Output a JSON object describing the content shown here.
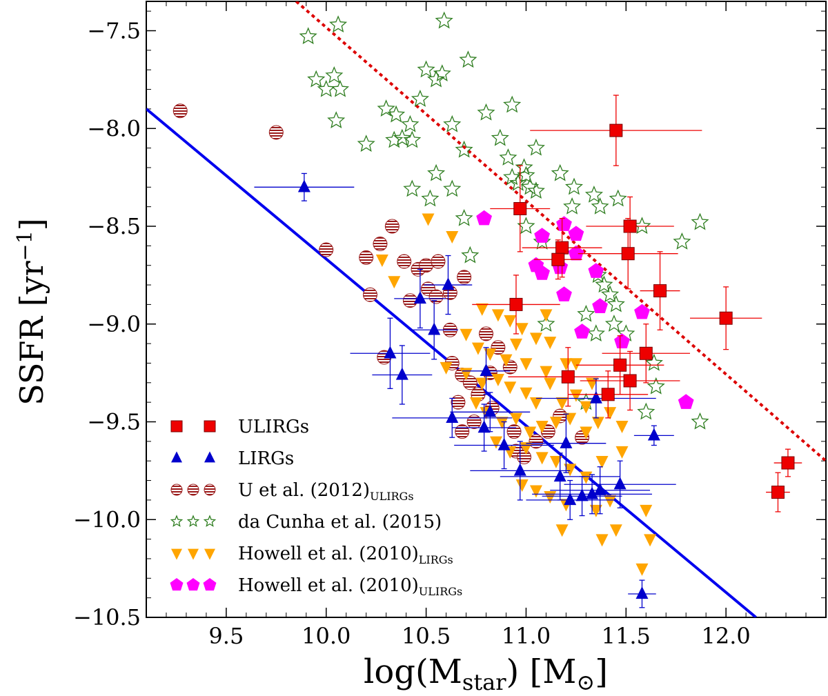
{
  "chart_data": {
    "type": "scatter",
    "title": "",
    "xlabel": {
      "main": "log(M",
      "sub": "star",
      "unit": ") [M",
      "unit_sub": "⊙",
      "close": "]"
    },
    "ylabel": {
      "main": "SSFR [yr",
      "sup": "−1",
      "close": "]"
    },
    "xlim": [
      9.1,
      12.5
    ],
    "ylim": [
      -10.5,
      -7.35
    ],
    "xticks": [
      9.5,
      10.0,
      10.5,
      11.0,
      11.5,
      12.0
    ],
    "xtick_labels": [
      "9.5",
      "10.0",
      "10.5",
      "11.0",
      "11.5",
      "12.0"
    ],
    "yticks": [
      -10.5,
      -10.0,
      -9.5,
      -9.0,
      -8.5,
      -8.0,
      -7.5
    ],
    "ytick_labels": [
      "−10.5",
      "−10.0",
      "−9.5",
      "−9.0",
      "−8.5",
      "−8.0",
      "−7.5"
    ],
    "grid": false,
    "legend_position": "lower-left",
    "lines": [
      {
        "name": "LIRG fit",
        "style": "solid",
        "color": "#0000ee",
        "x": [
          9.1,
          12.15
        ],
        "y": [
          -7.9,
          -10.5
        ]
      },
      {
        "name": "ULIRG fit",
        "style": "dotted",
        "color": "#dd0000",
        "x": [
          9.85,
          12.5
        ],
        "y": [
          -7.35,
          -9.7
        ]
      }
    ],
    "series": [
      {
        "name": "ULIRGs",
        "label": "ULIRGs",
        "marker": "square",
        "color": "#ee0000",
        "points": [
          [
            11.45,
            -8.01,
            0.43,
            0.18
          ],
          [
            10.97,
            -8.41,
            0.15,
            0.22
          ],
          [
            11.18,
            -8.61,
            0.2,
            0.15
          ],
          [
            11.16,
            -8.67,
            0.12,
            0.1
          ],
          [
            11.52,
            -8.5,
            0.22,
            0.15
          ],
          [
            11.51,
            -8.64,
            0.25,
            0.18
          ],
          [
            11.67,
            -8.83,
            0.1,
            0.2
          ],
          [
            10.95,
            -8.9,
            0.22,
            0.15
          ],
          [
            12.0,
            -8.97,
            0.18,
            0.16
          ],
          [
            11.47,
            -9.21,
            0.22,
            0.15
          ],
          [
            11.6,
            -9.15,
            0.22,
            0.15
          ],
          [
            11.21,
            -9.27,
            0.3,
            0.15
          ],
          [
            11.52,
            -9.29,
            0.25,
            0.15
          ],
          [
            11.41,
            -9.36,
            0.2,
            0.12
          ],
          [
            12.31,
            -9.71,
            0.07,
            0.07
          ],
          [
            12.26,
            -9.86,
            0.06,
            0.1
          ]
        ]
      },
      {
        "name": "LIRGs",
        "label": "LIRGs",
        "marker": "triangle",
        "color": "#0000cc",
        "points": [
          [
            9.89,
            -8.3,
            0.25,
            0.07
          ],
          [
            10.47,
            -8.87,
            0.13,
            0.15
          ],
          [
            10.61,
            -8.8,
            0.12,
            0.15
          ],
          [
            10.54,
            -9.03,
            0.12,
            0.15
          ],
          [
            10.32,
            -9.15,
            0.2,
            0.18
          ],
          [
            10.38,
            -9.26,
            0.15,
            0.15
          ],
          [
            10.8,
            -9.24,
            0.12,
            0.12
          ],
          [
            10.63,
            -9.48,
            0.3,
            0.1
          ],
          [
            10.79,
            -9.53,
            0.16,
            0.12
          ],
          [
            10.82,
            -9.45,
            0.2,
            0.1
          ],
          [
            10.89,
            -9.62,
            0.25,
            0.12
          ],
          [
            10.97,
            -9.75,
            0.25,
            0.15
          ],
          [
            11.17,
            -9.78,
            0.3,
            0.12
          ],
          [
            11.2,
            -9.61,
            0.2,
            0.15
          ],
          [
            11.22,
            -9.9,
            0.22,
            0.1
          ],
          [
            11.28,
            -9.88,
            0.2,
            0.1
          ],
          [
            11.33,
            -9.87,
            0.3,
            0.1
          ],
          [
            11.37,
            -9.85,
            0.25,
            0.12
          ],
          [
            11.35,
            -9.38,
            0.3,
            0.1
          ],
          [
            11.47,
            -9.82,
            0.28,
            0.12
          ],
          [
            11.64,
            -9.57,
            0.1,
            0.05
          ],
          [
            11.58,
            -10.38,
            0.07,
            0.07
          ]
        ]
      },
      {
        "name": "U et al. (2012) ULIRGs",
        "label": "U et al. (2012)",
        "label_sub": "ULIRGs",
        "marker": "hatched-circle",
        "color": "#9a1a1a",
        "points": [
          [
            9.27,
            -7.91
          ],
          [
            9.75,
            -8.02
          ],
          [
            10.0,
            -8.62
          ],
          [
            10.2,
            -8.66
          ],
          [
            10.27,
            -8.59
          ],
          [
            10.33,
            -8.5
          ],
          [
            10.39,
            -8.68
          ],
          [
            10.46,
            -8.72
          ],
          [
            10.5,
            -8.7
          ],
          [
            10.56,
            -8.68
          ],
          [
            10.22,
            -8.85
          ],
          [
            10.42,
            -8.88
          ],
          [
            10.51,
            -8.82
          ],
          [
            10.55,
            -8.86
          ],
          [
            10.62,
            -8.84
          ],
          [
            10.69,
            -8.76
          ],
          [
            10.62,
            -9.03
          ],
          [
            10.8,
            -9.05
          ],
          [
            10.86,
            -9.12
          ],
          [
            10.29,
            -9.17
          ],
          [
            10.63,
            -9.2
          ],
          [
            10.68,
            -9.26
          ],
          [
            10.72,
            -9.3
          ],
          [
            10.66,
            -9.4
          ],
          [
            10.76,
            -9.36
          ],
          [
            10.83,
            -9.43
          ],
          [
            10.68,
            -9.55
          ],
          [
            10.74,
            -9.5
          ],
          [
            10.82,
            -9.25
          ],
          [
            10.92,
            -9.22
          ],
          [
            10.94,
            -9.55
          ],
          [
            10.95,
            -9.65
          ],
          [
            10.99,
            -9.68
          ],
          [
            11.05,
            -9.6
          ],
          [
            11.11,
            -9.55
          ],
          [
            11.17,
            -9.47
          ],
          [
            11.28,
            -9.58
          ]
        ]
      },
      {
        "name": "da Cunha et al. (2015)",
        "label": "da Cunha et al. (2015)",
        "marker": "star",
        "color": "#2e7d1f",
        "points": [
          [
            9.91,
            -7.53
          ],
          [
            10.06,
            -7.47
          ],
          [
            10.59,
            -7.45
          ],
          [
            10.71,
            -7.65
          ],
          [
            9.95,
            -7.75
          ],
          [
            10.0,
            -7.8
          ],
          [
            10.04,
            -7.73
          ],
          [
            10.07,
            -7.8
          ],
          [
            10.3,
            -7.9
          ],
          [
            10.35,
            -7.93
          ],
          [
            10.42,
            -7.98
          ],
          [
            10.47,
            -7.85
          ],
          [
            10.5,
            -7.7
          ],
          [
            10.55,
            -7.75
          ],
          [
            10.58,
            -7.72
          ],
          [
            10.63,
            -7.98
          ],
          [
            10.8,
            -7.92
          ],
          [
            10.93,
            -7.88
          ],
          [
            10.05,
            -7.96
          ],
          [
            10.2,
            -8.08
          ],
          [
            10.34,
            -8.06
          ],
          [
            10.38,
            -8.05
          ],
          [
            10.43,
            -8.06
          ],
          [
            10.69,
            -8.11
          ],
          [
            10.87,
            -8.05
          ],
          [
            10.91,
            -8.15
          ],
          [
            10.99,
            -8.2
          ],
          [
            11.0,
            -8.24
          ],
          [
            11.05,
            -8.1
          ],
          [
            10.93,
            -8.25
          ],
          [
            10.96,
            -8.28
          ],
          [
            11.02,
            -8.3
          ],
          [
            11.05,
            -8.32
          ],
          [
            11.17,
            -8.23
          ],
          [
            11.24,
            -8.3
          ],
          [
            10.43,
            -8.31
          ],
          [
            10.52,
            -8.36
          ],
          [
            10.63,
            -8.31
          ],
          [
            10.55,
            -8.23
          ],
          [
            11.23,
            -8.4
          ],
          [
            11.34,
            -8.34
          ],
          [
            11.37,
            -8.4
          ],
          [
            11.46,
            -8.36
          ],
          [
            11.58,
            -8.5
          ],
          [
            11.78,
            -8.58
          ],
          [
            11.87,
            -8.48
          ],
          [
            11.36,
            -8.75
          ],
          [
            11.39,
            -8.8
          ],
          [
            11.42,
            -8.85
          ],
          [
            11.45,
            -8.9
          ],
          [
            11.3,
            -8.95
          ],
          [
            11.5,
            -9.05
          ],
          [
            11.64,
            -9.2
          ],
          [
            11.65,
            -9.32
          ],
          [
            11.87,
            -9.5
          ],
          [
            11.6,
            -9.45
          ],
          [
            11.3,
            -9.4
          ],
          [
            10.69,
            -8.46
          ],
          [
            10.72,
            -8.65
          ],
          [
            11.0,
            -8.5
          ],
          [
            11.44,
            -9.0
          ],
          [
            11.35,
            -9.05
          ],
          [
            11.1,
            -9.0
          ],
          [
            11.08,
            -8.58
          ]
        ]
      },
      {
        "name": "Howell et al. (2010) LIRGs",
        "label": "Howell et al. (2010)",
        "label_sub": "LIRGs",
        "marker": "triangle-down",
        "color": "#ffa500",
        "points": [
          [
            10.51,
            -8.46
          ],
          [
            10.63,
            -8.55
          ],
          [
            10.28,
            -8.67
          ],
          [
            10.34,
            -8.78
          ],
          [
            10.78,
            -8.92
          ],
          [
            10.86,
            -8.95
          ],
          [
            10.98,
            -9.02
          ],
          [
            11.05,
            -9.07
          ],
          [
            11.12,
            -9.09
          ],
          [
            10.7,
            -9.05
          ],
          [
            10.76,
            -9.12
          ],
          [
            10.82,
            -9.15
          ],
          [
            10.9,
            -9.18
          ],
          [
            10.95,
            -9.1
          ],
          [
            11.0,
            -9.2
          ],
          [
            11.1,
            -9.24
          ],
          [
            11.2,
            -9.2
          ],
          [
            10.6,
            -9.22
          ],
          [
            10.7,
            -9.25
          ],
          [
            10.78,
            -9.3
          ],
          [
            10.86,
            -9.28
          ],
          [
            10.92,
            -9.32
          ],
          [
            11.0,
            -9.35
          ],
          [
            11.05,
            -9.4
          ],
          [
            11.12,
            -9.3
          ],
          [
            11.18,
            -9.4
          ],
          [
            11.25,
            -9.36
          ],
          [
            11.3,
            -9.42
          ],
          [
            10.75,
            -9.4
          ],
          [
            10.8,
            -9.45
          ],
          [
            10.88,
            -9.5
          ],
          [
            10.95,
            -9.48
          ],
          [
            11.02,
            -9.55
          ],
          [
            11.08,
            -9.52
          ],
          [
            11.15,
            -9.5
          ],
          [
            11.22,
            -9.48
          ],
          [
            11.3,
            -9.55
          ],
          [
            11.36,
            -9.5
          ],
          [
            11.42,
            -9.45
          ],
          [
            11.48,
            -9.52
          ],
          [
            10.85,
            -9.6
          ],
          [
            10.92,
            -9.65
          ],
          [
            11.0,
            -9.63
          ],
          [
            11.08,
            -9.68
          ],
          [
            11.15,
            -9.7
          ],
          [
            11.22,
            -9.74
          ],
          [
            11.3,
            -9.78
          ],
          [
            11.38,
            -9.7
          ],
          [
            11.48,
            -9.65
          ],
          [
            10.98,
            -9.82
          ],
          [
            11.05,
            -9.85
          ],
          [
            11.12,
            -9.88
          ],
          [
            11.2,
            -9.92
          ],
          [
            11.35,
            -9.95
          ],
          [
            11.42,
            -9.9
          ],
          [
            11.18,
            -10.05
          ],
          [
            11.38,
            -10.1
          ],
          [
            11.6,
            -9.95
          ],
          [
            11.62,
            -10.1
          ],
          [
            11.58,
            -10.25
          ],
          [
            11.45,
            -10.05
          ],
          [
            11.25,
            -9.2
          ],
          [
            11.33,
            -9.3
          ],
          [
            11.1,
            -8.95
          ],
          [
            10.92,
            -8.98
          ]
        ]
      },
      {
        "name": "Howell et al. (2010) ULIRGs",
        "label": "Howell et al. (2010)",
        "label_sub": "ULIRGs",
        "marker": "pentagon",
        "color": "#ff00ff",
        "points": [
          [
            10.79,
            -8.46
          ],
          [
            11.08,
            -8.55
          ],
          [
            11.19,
            -8.49
          ],
          [
            11.25,
            -8.54
          ],
          [
            11.05,
            -8.7
          ],
          [
            11.08,
            -8.74
          ],
          [
            11.17,
            -8.71
          ],
          [
            11.25,
            -8.64
          ],
          [
            11.35,
            -8.73
          ],
          [
            11.19,
            -8.85
          ],
          [
            11.37,
            -8.91
          ],
          [
            11.58,
            -8.94
          ],
          [
            11.28,
            -9.04
          ],
          [
            11.48,
            -9.09
          ],
          [
            11.8,
            -9.4
          ]
        ]
      }
    ]
  }
}
